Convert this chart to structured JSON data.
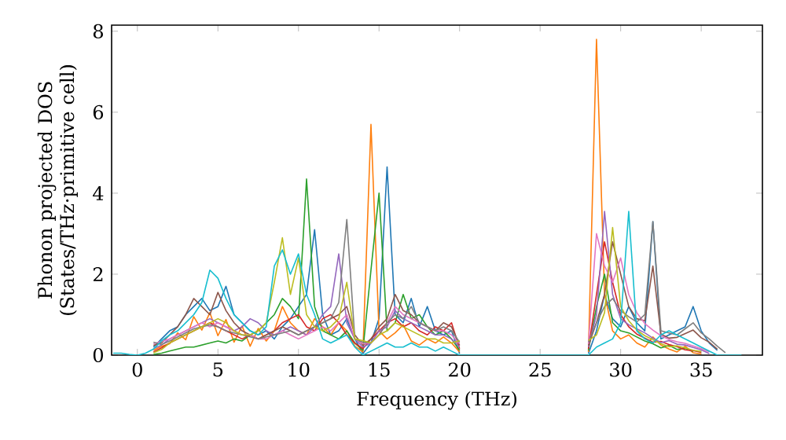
{
  "chart_data": {
    "type": "line",
    "xlabel": "Frequency (THz)",
    "ylabel": "Phonon projected DOS\n(States/THz·primitive cell)",
    "x": [
      -1.5,
      -1,
      -0.5,
      0,
      0.5,
      1,
      1.5,
      2,
      2.5,
      3,
      3.5,
      4,
      4.5,
      5,
      5.5,
      6,
      6.5,
      7,
      7.5,
      8,
      8.5,
      9,
      9.5,
      10,
      10.5,
      11,
      11.5,
      12,
      12.5,
      13,
      13.5,
      14,
      14.5,
      15,
      15.5,
      16,
      16.5,
      17,
      17.5,
      18,
      18.5,
      19,
      19.5,
      20,
      20.5,
      21,
      21.5,
      22,
      22.5,
      23,
      23.5,
      24,
      24.5,
      25,
      25.5,
      26,
      26.5,
      27,
      27.5,
      28,
      28.5,
      29,
      29.5,
      30,
      30.5,
      31,
      31.5,
      32,
      32.5,
      33,
      33.5,
      34,
      34.5,
      35,
      35.5,
      36,
      36.5,
      37,
      37.5
    ],
    "xlim": [
      -1.6,
      38.8
    ],
    "ylim": [
      0,
      8.15
    ],
    "xticks": [
      0,
      5,
      10,
      15,
      20,
      25,
      30,
      35
    ],
    "yticks": [
      0,
      2,
      4,
      6,
      8
    ],
    "marker": "none",
    "line_style": "solid",
    "series": [
      {
        "color": "#1f77b4",
        "values": [
          null,
          null,
          null,
          null,
          null,
          0.2,
          0.4,
          0.6,
          0.7,
          1.0,
          1.2,
          1.4,
          1.1,
          1.2,
          1.7,
          1.0,
          0.8,
          0.6,
          0.5,
          0.6,
          0.4,
          0.7,
          0.9,
          1.2,
          1.5,
          3.1,
          1.0,
          0.5,
          0.6,
          0.9,
          0.4,
          0.04,
          0.3,
          0.9,
          4.65,
          1.0,
          0.8,
          1.4,
          0.7,
          1.2,
          0.6,
          0.5,
          0.6,
          0.04,
          null,
          null,
          null,
          null,
          null,
          null,
          null,
          null,
          null,
          null,
          null,
          null,
          null,
          null,
          null,
          0.04,
          0.6,
          1.5,
          0.9,
          0.7,
          1.2,
          0.8,
          0.6,
          3.3,
          0.4,
          0.5,
          0.6,
          0.7,
          1.2,
          0.6,
          0.3,
          0.12,
          null,
          null,
          null
        ]
      },
      {
        "color": "#ff7f0e",
        "values": [
          null,
          null,
          null,
          null,
          null,
          0.12,
          0.22,
          0.28,
          0.55,
          0.38,
          0.95,
          0.62,
          1.05,
          0.48,
          0.88,
          0.32,
          0.72,
          0.22,
          0.66,
          0.35,
          0.6,
          1.2,
          0.8,
          0.6,
          0.5,
          0.9,
          0.7,
          0.5,
          0.8,
          0.6,
          0.22,
          0.08,
          5.7,
          0.6,
          0.4,
          0.55,
          0.75,
          0.35,
          0.25,
          0.4,
          0.3,
          0.45,
          0.3,
          0.08,
          null,
          null,
          null,
          null,
          null,
          null,
          null,
          null,
          null,
          null,
          null,
          null,
          null,
          null,
          null,
          0.08,
          7.8,
          1.5,
          0.6,
          0.4,
          0.5,
          0.3,
          0.2,
          0.45,
          0.25,
          0.15,
          0.08,
          0.22,
          0.06,
          0.03,
          null,
          null,
          null,
          null,
          null
        ]
      },
      {
        "color": "#2ca02c",
        "values": [
          null,
          null,
          null,
          null,
          null,
          0.02,
          0.05,
          0.1,
          0.15,
          0.2,
          0.2,
          0.25,
          0.3,
          0.35,
          0.3,
          0.4,
          0.35,
          0.5,
          0.6,
          0.8,
          1.0,
          1.4,
          1.2,
          0.9,
          4.35,
          1.2,
          0.6,
          0.5,
          0.4,
          0.6,
          0.3,
          0.12,
          2.1,
          4.0,
          0.6,
          0.8,
          1.5,
          0.9,
          1.0,
          0.7,
          0.5,
          0.6,
          0.4,
          0.12,
          null,
          null,
          null,
          null,
          null,
          null,
          null,
          null,
          null,
          null,
          null,
          null,
          null,
          null,
          null,
          0.12,
          1.2,
          2.0,
          0.8,
          0.6,
          0.55,
          0.45,
          0.35,
          0.28,
          0.18,
          0.24,
          0.14,
          0.17,
          0.09,
          null,
          null,
          null,
          null,
          null,
          null
        ]
      },
      {
        "color": "#d62728",
        "values": [
          null,
          null,
          null,
          null,
          null,
          0.08,
          0.18,
          0.3,
          0.4,
          0.5,
          0.6,
          0.7,
          0.8,
          0.7,
          0.6,
          0.5,
          0.4,
          0.5,
          0.4,
          0.5,
          0.6,
          0.8,
          0.9,
          1.0,
          0.7,
          0.6,
          0.9,
          1.0,
          0.8,
          0.5,
          0.3,
          0.16,
          0.4,
          0.6,
          0.8,
          0.9,
          0.7,
          0.8,
          0.6,
          0.5,
          0.7,
          0.6,
          0.8,
          0.16,
          null,
          null,
          null,
          null,
          null,
          null,
          null,
          null,
          null,
          null,
          null,
          null,
          null,
          null,
          null,
          0.16,
          1.5,
          2.8,
          1.8,
          1.0,
          0.7,
          0.52,
          0.42,
          0.32,
          0.34,
          0.26,
          0.21,
          0.13,
          0.11,
          0.07,
          null,
          null,
          null,
          null,
          null
        ]
      },
      {
        "color": "#9467bd",
        "values": [
          null,
          null,
          null,
          null,
          null,
          0.16,
          0.25,
          0.4,
          0.5,
          0.6,
          0.7,
          0.8,
          0.9,
          0.8,
          0.7,
          0.6,
          0.7,
          0.9,
          0.8,
          0.6,
          0.5,
          0.6,
          0.7,
          0.6,
          0.5,
          0.7,
          1.0,
          1.2,
          2.5,
          0.8,
          0.4,
          0.2,
          0.3,
          0.6,
          0.7,
          1.1,
          0.9,
          0.8,
          0.7,
          0.6,
          0.5,
          0.5,
          0.4,
          0.2,
          null,
          null,
          null,
          null,
          null,
          null,
          null,
          null,
          null,
          null,
          null,
          null,
          null,
          null,
          null,
          0.2,
          1.0,
          3.55,
          1.5,
          0.9,
          0.75,
          0.65,
          0.55,
          0.42,
          0.31,
          0.36,
          0.27,
          0.25,
          0.19,
          0.13,
          0.04,
          null,
          null,
          null,
          null
        ]
      },
      {
        "color": "#8c564b",
        "values": [
          null,
          null,
          null,
          null,
          null,
          0.24,
          0.3,
          0.5,
          0.7,
          1.0,
          1.4,
          1.2,
          1.0,
          1.55,
          1.1,
          0.8,
          0.6,
          0.5,
          0.4,
          0.5,
          0.6,
          0.7,
          0.6,
          0.5,
          0.6,
          0.7,
          0.8,
          0.9,
          1.0,
          1.2,
          0.5,
          0.24,
          0.4,
          0.7,
          0.9,
          1.5,
          1.1,
          1.0,
          0.8,
          0.7,
          0.6,
          0.8,
          0.7,
          0.24,
          null,
          null,
          null,
          null,
          null,
          null,
          null,
          null,
          null,
          null,
          null,
          null,
          null,
          null,
          null,
          0.24,
          0.8,
          1.5,
          2.8,
          2.0,
          1.2,
          0.9,
          0.85,
          2.2,
          0.52,
          0.42,
          0.44,
          0.53,
          0.62,
          0.43,
          0.32,
          0.15,
          null,
          null,
          null
        ]
      },
      {
        "color": "#e377c2",
        "values": [
          null,
          null,
          null,
          null,
          null,
          0.28,
          0.34,
          0.4,
          0.5,
          0.6,
          0.7,
          0.8,
          0.7,
          0.8,
          0.7,
          0.6,
          0.5,
          0.5,
          0.4,
          0.4,
          0.5,
          0.6,
          0.5,
          0.4,
          0.5,
          0.6,
          0.7,
          0.6,
          0.8,
          1.0,
          0.4,
          0.28,
          0.3,
          0.5,
          0.8,
          1.2,
          1.0,
          0.9,
          0.8,
          0.7,
          0.6,
          0.6,
          0.5,
          0.28,
          null,
          null,
          null,
          null,
          null,
          null,
          null,
          null,
          null,
          null,
          null,
          null,
          null,
          null,
          null,
          0.28,
          3.0,
          2.2,
          1.8,
          2.4,
          1.5,
          1.05,
          0.78,
          0.62,
          0.48,
          0.39,
          0.33,
          0.29,
          0.23,
          0.16,
          0.08,
          null,
          null,
          null,
          null
        ]
      },
      {
        "color": "#7f7f7f",
        "values": [
          null,
          null,
          null,
          null,
          null,
          0.32,
          0.26,
          0.35,
          0.45,
          0.55,
          0.65,
          0.7,
          0.75,
          0.7,
          0.6,
          0.55,
          0.5,
          0.45,
          0.4,
          0.45,
          0.5,
          0.55,
          0.6,
          0.5,
          0.6,
          0.7,
          0.8,
          0.9,
          1.3,
          3.35,
          0.4,
          0.32,
          0.3,
          0.5,
          0.8,
          1.0,
          0.9,
          1.2,
          0.8,
          0.7,
          0.6,
          0.7,
          0.6,
          0.32,
          null,
          null,
          null,
          null,
          null,
          null,
          null,
          null,
          null,
          null,
          null,
          null,
          null,
          null,
          null,
          0.32,
          0.8,
          1.2,
          1.4,
          1.1,
          0.95,
          0.82,
          1.0,
          3.3,
          0.6,
          0.55,
          0.5,
          0.65,
          0.8,
          0.55,
          0.4,
          0.22,
          0.06,
          null,
          null
        ]
      },
      {
        "color": "#bcbd22",
        "values": [
          null,
          null,
          null,
          null,
          null,
          0.06,
          0.14,
          0.3,
          0.4,
          0.5,
          0.6,
          0.7,
          0.8,
          0.9,
          0.8,
          0.6,
          0.5,
          0.5,
          0.6,
          0.8,
          1.8,
          2.9,
          1.5,
          2.4,
          1.0,
          0.7,
          0.6,
          0.7,
          0.9,
          1.8,
          0.4,
          0.36,
          0.3,
          0.5,
          0.6,
          0.8,
          0.7,
          0.6,
          0.5,
          0.4,
          0.4,
          0.3,
          0.3,
          0.36,
          null,
          null,
          null,
          null,
          null,
          null,
          null,
          null,
          null,
          null,
          null,
          null,
          null,
          null,
          null,
          0.36,
          0.5,
          1.05,
          3.15,
          1.2,
          0.85,
          0.62,
          0.48,
          0.38,
          0.28,
          0.21,
          0.23,
          0.18,
          0.12,
          0.09,
          null,
          null,
          null,
          null,
          null
        ]
      },
      {
        "color": "#17becf",
        "values": [
          0.05,
          0.05,
          0.02,
          0,
          0.05,
          0.15,
          0.35,
          0.5,
          0.6,
          0.8,
          1.0,
          1.3,
          2.1,
          1.9,
          1.4,
          1.0,
          0.8,
          0.6,
          0.5,
          0.7,
          2.2,
          2.6,
          2.0,
          2.5,
          1.5,
          1.0,
          0.4,
          0.3,
          0.4,
          0.5,
          0.2,
          0,
          0.1,
          0.2,
          0.3,
          0.2,
          0.2,
          0.3,
          0.2,
          0.2,
          0.1,
          0.2,
          0.1,
          0,
          0,
          0,
          0,
          0,
          0,
          0,
          0,
          0,
          0,
          0,
          0,
          0,
          0,
          0,
          0,
          0,
          0.2,
          0.3,
          0.4,
          0.8,
          3.55,
          0.6,
          0.4,
          0.3,
          0.5,
          0.6,
          0.5,
          0.4,
          0.3,
          0.2,
          0.1,
          0,
          0,
          0,
          0
        ]
      }
    ]
  }
}
